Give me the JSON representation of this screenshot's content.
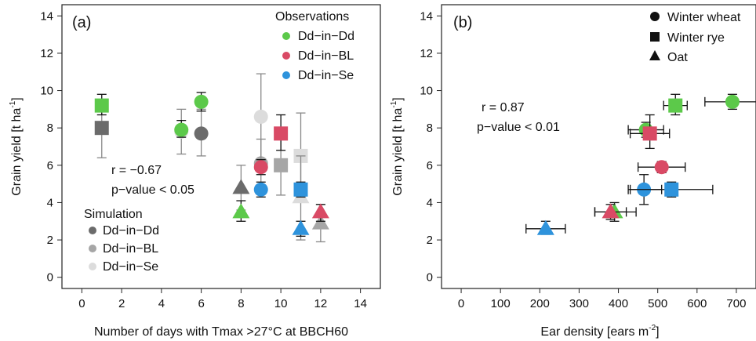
{
  "colors": {
    "Dd-in-Dd": "#5cc94a",
    "Dd-in-BL": "#d94a65",
    "Dd-in-Se": "#2e93dc",
    "sim-Dd-in-Dd": "#6b6b6b",
    "sim-Dd-in-BL": "#a6a6a6",
    "sim-Dd-in-Se": "#dcdcdc",
    "errorbar": "#111111",
    "sim-errorbar": "#888888"
  },
  "chart_data": [
    {
      "type": "scatter",
      "panel_label": "(a)",
      "xlabel": "Number of days with Tmax >27°C at BBCH60",
      "ylabel_main": "Grain yield [t ha",
      "ylabel_sup": "-1",
      "ylabel_end": "]",
      "xlim": [
        -1,
        15
      ],
      "ylim": [
        -0.6,
        14.6
      ],
      "xticks": [
        "0",
        "2",
        "4",
        "6",
        "8",
        "10",
        "12",
        "14"
      ],
      "yticks": [
        "0",
        "2",
        "4",
        "6",
        "8",
        "10",
        "12",
        "14"
      ],
      "stat_r": "r = −0.67",
      "stat_p": "p−value < 0.05",
      "legend_obs_title": "Observations",
      "legend_sim_title": "Simulation",
      "legend_obs": [
        "Dd−in−Dd",
        "Dd−in−BL",
        "Dd−in−Se"
      ],
      "legend_sim": [
        "Dd−in−Dd",
        "Dd−in−BL",
        "Dd−in−Se"
      ],
      "series": [
        {
          "group": "obs",
          "site": "Dd-in-Dd",
          "points": [
            {
              "crop": "rye",
              "x": 1,
              "y": 9.2,
              "ylo": 8.7,
              "yhi": 9.8
            },
            {
              "crop": "wheat",
              "x": 5,
              "y": 7.9,
              "ylo": 7.5,
              "yhi": 8.4
            },
            {
              "crop": "wheat",
              "x": 6,
              "y": 9.4,
              "ylo": 8.9,
              "yhi": 9.9
            },
            {
              "crop": "oat",
              "x": 8,
              "y": 3.5,
              "ylo": 3.0,
              "yhi": 4.1
            }
          ]
        },
        {
          "group": "obs",
          "site": "Dd-in-BL",
          "points": [
            {
              "crop": "wheat",
              "x": 9,
              "y": 5.9,
              "ylo": 5.5,
              "yhi": 6.3
            },
            {
              "crop": "rye",
              "x": 10,
              "y": 7.7,
              "ylo": 6.8,
              "yhi": 8.7
            },
            {
              "crop": "oat",
              "x": 12,
              "y": 3.5,
              "ylo": 3.0,
              "yhi": 3.9
            }
          ]
        },
        {
          "group": "obs",
          "site": "Dd-in-Se",
          "points": [
            {
              "crop": "wheat",
              "x": 9,
              "y": 4.7,
              "ylo": 4.3,
              "yhi": 5.1
            },
            {
              "crop": "rye",
              "x": 11,
              "y": 4.7,
              "ylo": 4.3,
              "yhi": 5.1
            },
            {
              "crop": "oat",
              "x": 11,
              "y": 2.6,
              "ylo": 2.2,
              "yhi": 3.0
            }
          ]
        },
        {
          "group": "sim",
          "site": "sim-Dd-in-Dd",
          "points": [
            {
              "crop": "rye",
              "x": 1,
              "y": 8.0,
              "ylo": 6.4,
              "yhi": 9.5
            },
            {
              "crop": "wheat",
              "x": 6,
              "y": 7.7,
              "ylo": 6.5,
              "yhi": 9.0
            },
            {
              "crop": "oat",
              "x": 8,
              "y": 4.8,
              "ylo": 3.6,
              "yhi": 6.0
            }
          ]
        },
        {
          "group": "sim",
          "site": "sim-Dd-in-BL",
          "points": [
            {
              "crop": "wheat",
              "x": 9,
              "y": 6.1,
              "ylo": 4.8,
              "yhi": 7.4
            },
            {
              "crop": "rye",
              "x": 10,
              "y": 6.0,
              "ylo": 4.4,
              "yhi": 7.6
            },
            {
              "crop": "oat",
              "x": 12,
              "y": 2.9,
              "ylo": 1.9,
              "yhi": 3.9
            }
          ]
        },
        {
          "group": "sim",
          "site": "sim-Dd-in-Se",
          "points": [
            {
              "crop": "wheat",
              "x": 5,
              "y": 7.8,
              "ylo": 6.6,
              "yhi": 9.0
            },
            {
              "crop": "wheat",
              "x": 9,
              "y": 8.6,
              "ylo": 6.2,
              "yhi": 10.9
            },
            {
              "crop": "rye",
              "x": 11,
              "y": 6.5,
              "ylo": 4.3,
              "yhi": 8.8
            },
            {
              "crop": "oat",
              "x": 11,
              "y": 4.3,
              "ylo": 2.0,
              "yhi": 6.5
            }
          ]
        }
      ]
    },
    {
      "type": "scatter",
      "panel_label": "(b)",
      "xlabel_main": "Ear density [ears m",
      "xlabel_sup": "-2",
      "xlabel_end": "]",
      "ylabel_main": "Grain yield [t ha",
      "ylabel_sup": "-1",
      "ylabel_end": "]",
      "xlim": [
        -50,
        750
      ],
      "ylim": [
        -0.6,
        14.6
      ],
      "xticks": [
        "0",
        "100",
        "200",
        "300",
        "400",
        "500",
        "600",
        "700"
      ],
      "yticks": [
        "0",
        "2",
        "4",
        "6",
        "8",
        "10",
        "12",
        "14"
      ],
      "stat_r": "r = 0.87",
      "stat_p": "p−value < 0.01",
      "legend_crops": [
        "Winter wheat",
        "Winter rye",
        "Oat"
      ],
      "series": [
        {
          "site": "Dd-in-Dd",
          "points": [
            {
              "crop": "rye",
              "x": 545,
              "y": 9.2,
              "xlo": 515,
              "xhi": 575,
              "ylo": 8.7,
              "yhi": 9.8
            },
            {
              "crop": "wheat",
              "x": 470,
              "y": 7.9,
              "xlo": 425,
              "xhi": 515,
              "ylo": 7.5,
              "yhi": 8.3
            },
            {
              "crop": "wheat",
              "x": 690,
              "y": 9.4,
              "xlo": 620,
              "xhi": 760,
              "ylo": 9.0,
              "yhi": 9.8
            },
            {
              "crop": "oat",
              "x": 390,
              "y": 3.5,
              "xlo": 340,
              "xhi": 445,
              "ylo": 3.0,
              "yhi": 4.0
            }
          ]
        },
        {
          "site": "Dd-in-BL",
          "points": [
            {
              "crop": "wheat",
              "x": 510,
              "y": 5.9,
              "xlo": 450,
              "xhi": 570,
              "ylo": 5.6,
              "yhi": 6.2
            },
            {
              "crop": "rye",
              "x": 480,
              "y": 7.7,
              "xlo": 430,
              "xhi": 530,
              "ylo": 6.9,
              "yhi": 8.7
            },
            {
              "crop": "oat",
              "x": 380,
              "y": 3.5,
              "xlo": 340,
              "xhi": 420,
              "ylo": 3.1,
              "yhi": 3.9
            }
          ]
        },
        {
          "site": "Dd-in-Se",
          "points": [
            {
              "crop": "wheat",
              "x": 465,
              "y": 4.7,
              "xlo": 425,
              "xhi": 510,
              "ylo": 3.9,
              "yhi": 5.5
            },
            {
              "crop": "rye",
              "x": 535,
              "y": 4.7,
              "xlo": 430,
              "xhi": 640,
              "ylo": 4.3,
              "yhi": 5.1
            },
            {
              "crop": "oat",
              "x": 215,
              "y": 2.6,
              "xlo": 165,
              "xhi": 265,
              "ylo": 2.3,
              "yhi": 3.0
            }
          ]
        }
      ]
    }
  ]
}
